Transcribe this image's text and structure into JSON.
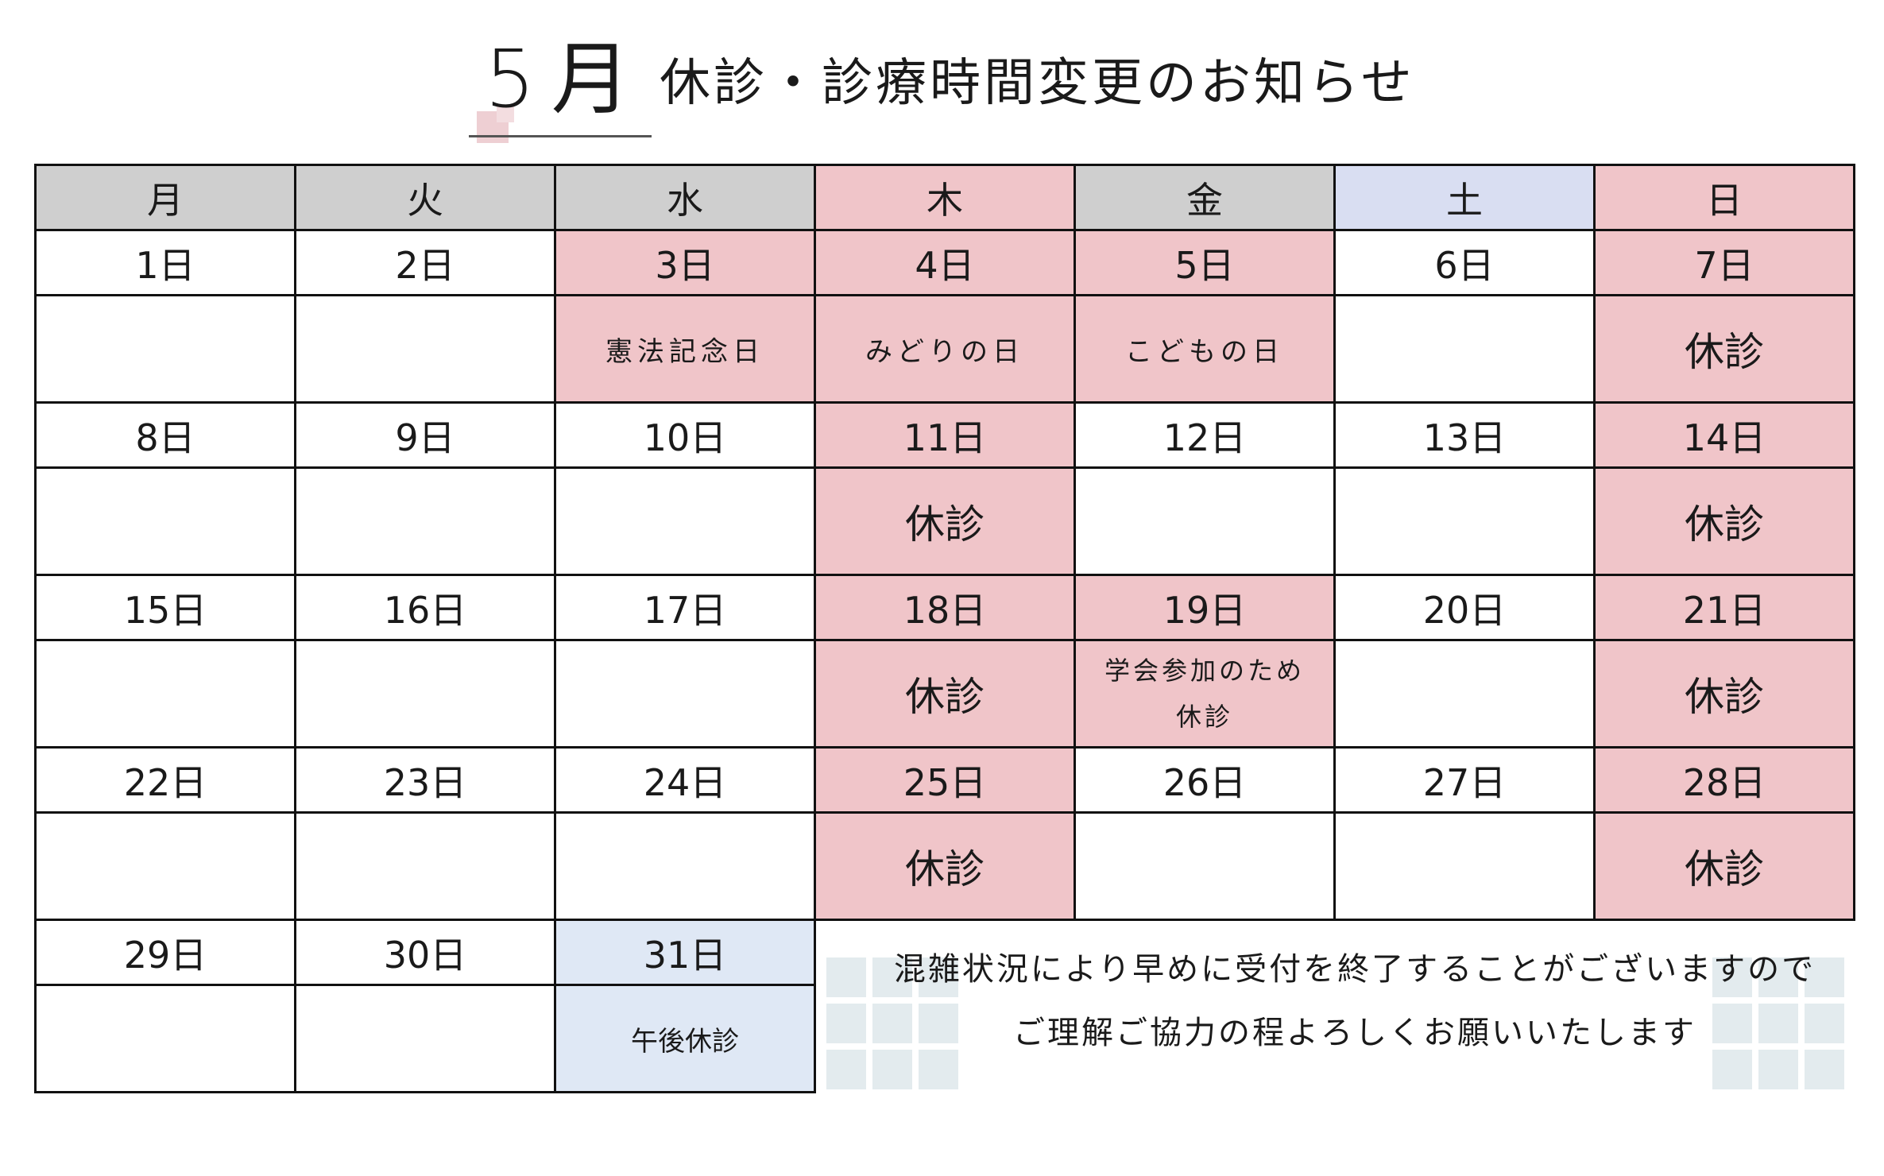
{
  "title": {
    "month": "5月",
    "text": "休診・診療時間変更のお知らせ"
  },
  "weekdays": [
    {
      "label": "月",
      "color": "#cfcfcf"
    },
    {
      "label": "火",
      "color": "#cfcfcf"
    },
    {
      "label": "水",
      "color": "#cfcfcf"
    },
    {
      "label": "木",
      "color": "#f0c5c9"
    },
    {
      "label": "金",
      "color": "#cfcfcf"
    },
    {
      "label": "土",
      "color": "#d9def2"
    },
    {
      "label": "日",
      "color": "#f0c5c9"
    }
  ],
  "weeks": [
    {
      "days": [
        {
          "date": "1日",
          "note": ""
        },
        {
          "date": "2日",
          "note": ""
        },
        {
          "date": "3日",
          "note": "憲法記念日",
          "highlight": "pink"
        },
        {
          "date": "4日",
          "note": "みどりの日",
          "highlight": "pink"
        },
        {
          "date": "5日",
          "note": "こどもの日",
          "highlight": "pink"
        },
        {
          "date": "6日",
          "note": ""
        },
        {
          "date": "7日",
          "note": "休診",
          "highlight": "pink"
        }
      ]
    },
    {
      "days": [
        {
          "date": "8日",
          "note": ""
        },
        {
          "date": "9日",
          "note": ""
        },
        {
          "date": "10日",
          "note": ""
        },
        {
          "date": "11日",
          "note": "休診",
          "highlight": "pink"
        },
        {
          "date": "12日",
          "note": ""
        },
        {
          "date": "13日",
          "note": ""
        },
        {
          "date": "14日",
          "note": "休診",
          "highlight": "pink"
        }
      ]
    },
    {
      "days": [
        {
          "date": "15日",
          "note": ""
        },
        {
          "date": "16日",
          "note": ""
        },
        {
          "date": "17日",
          "note": ""
        },
        {
          "date": "18日",
          "note": "休診",
          "highlight": "pink"
        },
        {
          "date": "19日",
          "note": "学会参加のため",
          "note2": "休診",
          "highlight": "pink"
        },
        {
          "date": "20日",
          "note": ""
        },
        {
          "date": "21日",
          "note": "休診",
          "highlight": "pink"
        }
      ]
    },
    {
      "days": [
        {
          "date": "22日",
          "note": ""
        },
        {
          "date": "23日",
          "note": ""
        },
        {
          "date": "24日",
          "note": ""
        },
        {
          "date": "25日",
          "note": "休診",
          "highlight": "pink"
        },
        {
          "date": "26日",
          "note": ""
        },
        {
          "date": "27日",
          "note": ""
        },
        {
          "date": "28日",
          "note": "休診",
          "highlight": "pink"
        }
      ]
    },
    {
      "days": [
        {
          "date": "29日",
          "note": ""
        },
        {
          "date": "30日",
          "note": ""
        },
        {
          "date": "31日",
          "note": "午後休診",
          "highlight": "blue"
        }
      ]
    }
  ],
  "message": {
    "line1": "混雑状況により早めに受付を終了することがございますので",
    "line2": "ご理解ご協力の程よろしくお願いいたします"
  },
  "colors": {
    "pink": "#f0c5c9",
    "gray": "#cfcfcf",
    "lavender": "#d9def2",
    "light_blue": "#dfe8f5"
  }
}
